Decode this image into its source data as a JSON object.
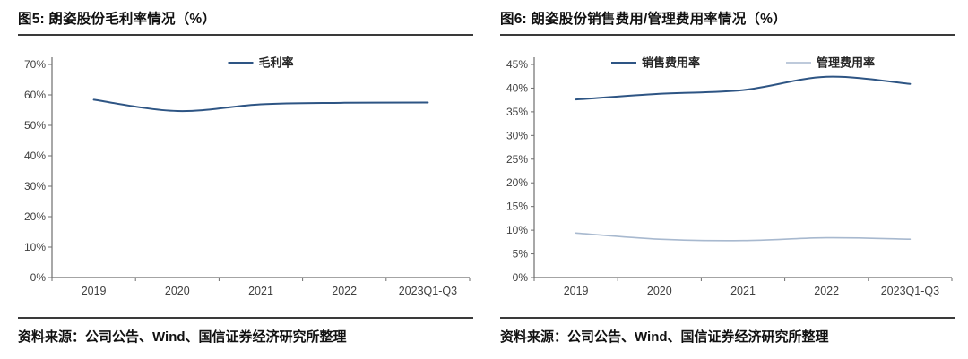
{
  "chart_data": [
    {
      "type": "line",
      "title": "图5: 朗姿股份毛利率情况（%）",
      "categories": [
        "2019",
        "2020",
        "2021",
        "2022",
        "2023Q1-Q3"
      ],
      "series": [
        {
          "name": "毛利率",
          "color": "#2E5584",
          "values": [
            58.4,
            54.7,
            56.9,
            57.4,
            57.5
          ]
        }
      ],
      "ylim": [
        0,
        70
      ],
      "ytick_step": 10,
      "ytick_suffix": "%",
      "grid": false,
      "legend_position": "top",
      "smooth": true,
      "xlabel": "",
      "ylabel": ""
    },
    {
      "type": "line",
      "title": "图6: 朗姿股份销售费用/管理费用率情况（%）",
      "categories": [
        "2019",
        "2020",
        "2021",
        "2022",
        "2023Q1-Q3"
      ],
      "series": [
        {
          "name": "销售费用率",
          "color": "#2E5584",
          "values": [
            37.6,
            38.8,
            39.6,
            42.4,
            40.9
          ]
        },
        {
          "name": "管理费用率",
          "color": "#A8B9CF",
          "values": [
            9.4,
            8.1,
            7.8,
            8.4,
            8.1
          ]
        }
      ],
      "ylim": [
        0,
        45
      ],
      "ytick_step": 5,
      "ytick_suffix": "%",
      "grid": false,
      "legend_position": "top",
      "smooth": true,
      "xlabel": "",
      "ylabel": ""
    }
  ],
  "panels": [
    {
      "source": "资料来源：公司公告、Wind、国信证券经济研究所整理"
    },
    {
      "source": "资料来源：公司公告、Wind、国信证券经济研究所整理"
    }
  ],
  "colors": {
    "series_dark": "#2E5584",
    "series_light": "#A8B9CF",
    "axis": "#6e6e6e",
    "tick_text": "#3f3f3f",
    "rule": "#3a3a3a",
    "title_text": "#111111",
    "background": "#ffffff"
  }
}
